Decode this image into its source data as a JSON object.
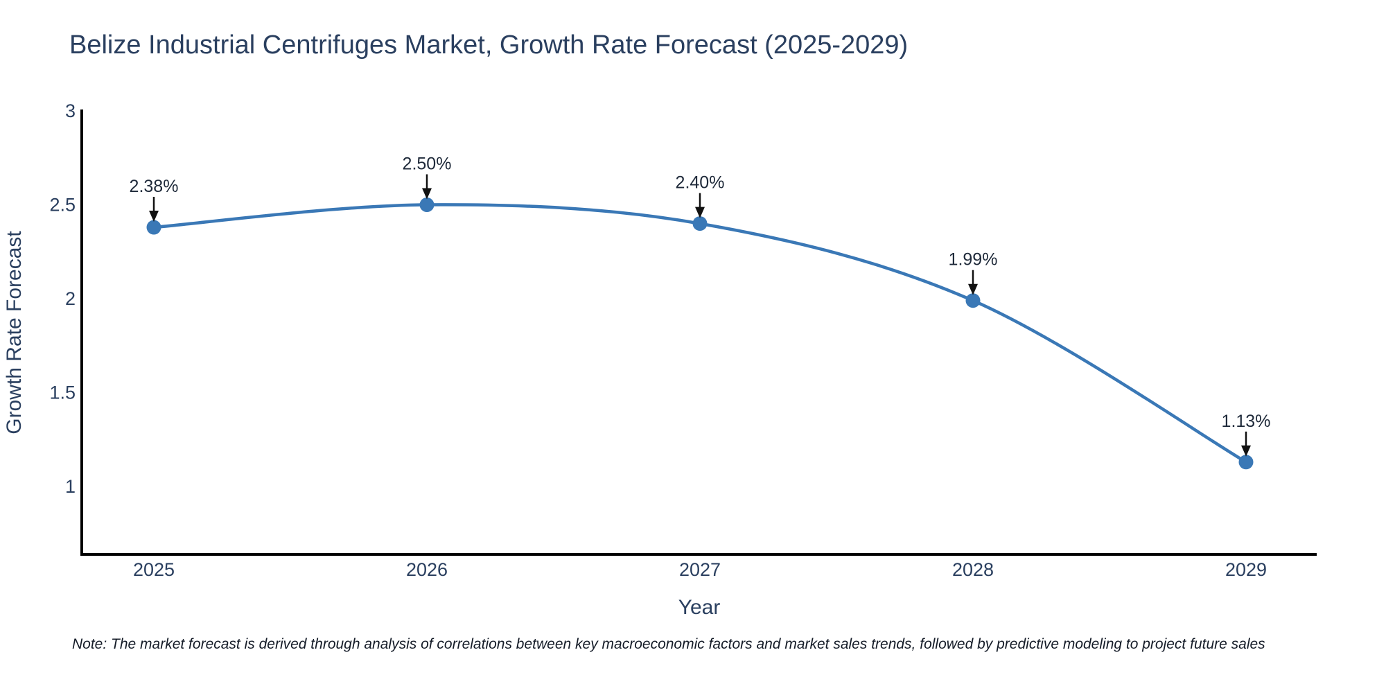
{
  "page": {
    "background_color": "#ffffff"
  },
  "note": "Note: The market forecast is derived through analysis of correlations between key macroeconomic factors and market sales trends, followed by predictive modeling to project future sales",
  "chart_data": {
    "type": "line",
    "title": "Belize Industrial Centrifuges Market, Growth Rate Forecast (2025-2029)",
    "xlabel": "Year",
    "ylabel": "Growth Rate Forecast",
    "x": [
      2025,
      2026,
      2027,
      2028,
      2029
    ],
    "x_tick_labels": [
      "2025",
      "2026",
      "2027",
      "2028",
      "2029"
    ],
    "series": [
      {
        "name": "Growth Rate Forecast",
        "values": [
          2.38,
          2.5,
          2.4,
          1.99,
          1.13
        ]
      }
    ],
    "point_labels": [
      "2.38%",
      "2.50%",
      "2.40%",
      "1.99%",
      "1.13%"
    ],
    "y_ticks": [
      3,
      2.5,
      2,
      1.5,
      1
    ],
    "y_tick_labels": [
      "3",
      "2.5",
      "2",
      "1.5",
      "1"
    ],
    "ylim": [
      0.62,
      3.04
    ],
    "xlim": [
      2024.74,
      2029.26
    ],
    "grid": false,
    "legend": false,
    "line_shape": "spline",
    "marker_size": 10.5,
    "line_width": 4.5,
    "colors": {
      "line": "#3a78b6",
      "marker": "#3a78b6",
      "axis_line": "#000000",
      "tick_text": "#2a3f5f",
      "title_text": "#2a3f5f",
      "annotation_text": "#1f2a3a",
      "arrow": "#111111"
    }
  }
}
